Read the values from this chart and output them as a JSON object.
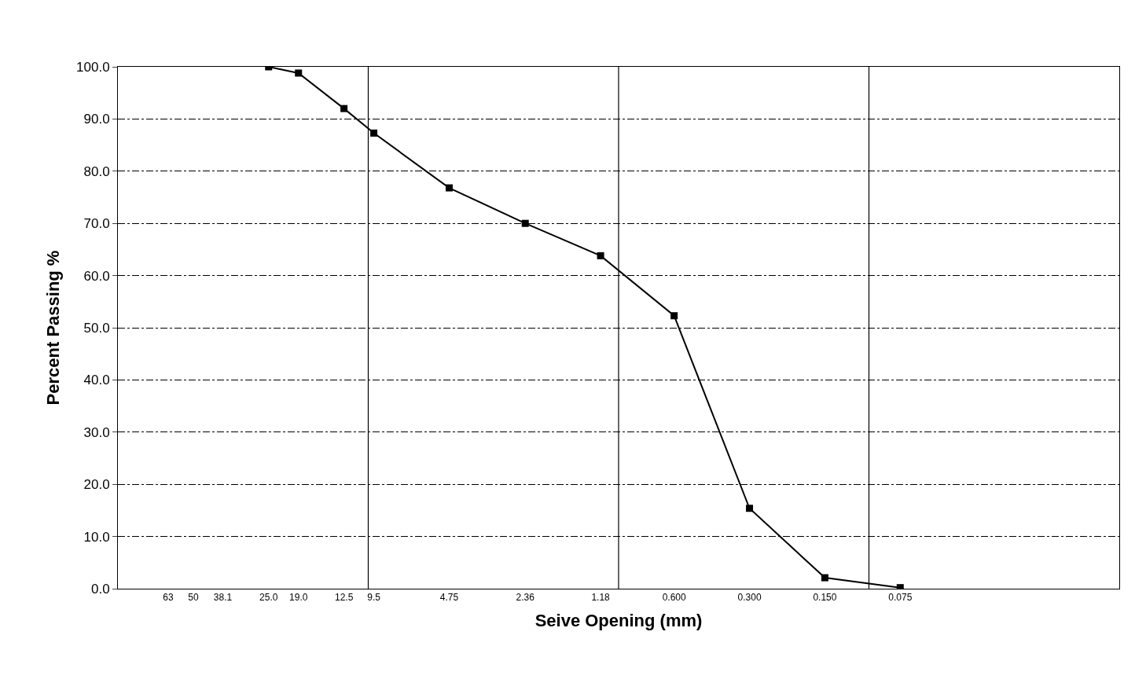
{
  "chart_data": {
    "type": "line",
    "xlabel": "Seive Opening (mm)",
    "ylabel": "Percent Passing %",
    "log": "x",
    "x": [
      25.0,
      19.0,
      12.5,
      9.5,
      4.75,
      2.36,
      1.18,
      0.6,
      0.3,
      0.15,
      0.075
    ],
    "series": [
      {
        "color": "#000000",
        "values": [
          100.0,
          98.8,
          92.0,
          87.3,
          76.8,
          70.0,
          63.8,
          52.3,
          15.4,
          2.1,
          0.2
        ]
      }
    ],
    "marker": "square",
    "line_style": "solid",
    "xlim": [
      100,
      0.01
    ],
    "xticks": [
      63,
      50,
      {
        "value": 38.1,
        "label": "38.1"
      },
      {
        "value": 25.0,
        "label": "25.0"
      },
      {
        "value": 19.0,
        "label": "19.0"
      },
      12.5,
      9.5,
      4.75,
      2.36,
      1.18,
      {
        "value": 0.6,
        "label": "0.600"
      },
      {
        "value": 0.3,
        "label": "0.300"
      },
      {
        "value": 0.15,
        "label": "0.150"
      },
      0.075
    ],
    "ylim": [
      0,
      100
    ],
    "yticks": [
      {
        "value": 0,
        "label": "0.0"
      },
      {
        "value": 10,
        "label": "10.0"
      },
      {
        "value": 20,
        "label": "20.0"
      },
      {
        "value": 30,
        "label": "30.0"
      },
      {
        "value": 40,
        "label": "40.0"
      },
      {
        "value": 50,
        "label": "50.0"
      },
      {
        "value": 60,
        "label": "60.0"
      },
      {
        "value": 70,
        "label": "70.0"
      },
      {
        "value": 80,
        "label": "80.0"
      },
      {
        "value": 90,
        "label": "90.0"
      },
      {
        "value": 100,
        "label": "100.0"
      }
    ],
    "grid": "y",
    "ref_lines": [
      {
        "axis": "x",
        "value": 10,
        "color": "#000000",
        "line_style": "solid"
      },
      {
        "axis": "x",
        "value": 1,
        "color": "#000000",
        "line_style": "solid"
      },
      {
        "axis": "x",
        "value": 0.1,
        "color": "#000000",
        "line_style": "solid"
      }
    ]
  }
}
